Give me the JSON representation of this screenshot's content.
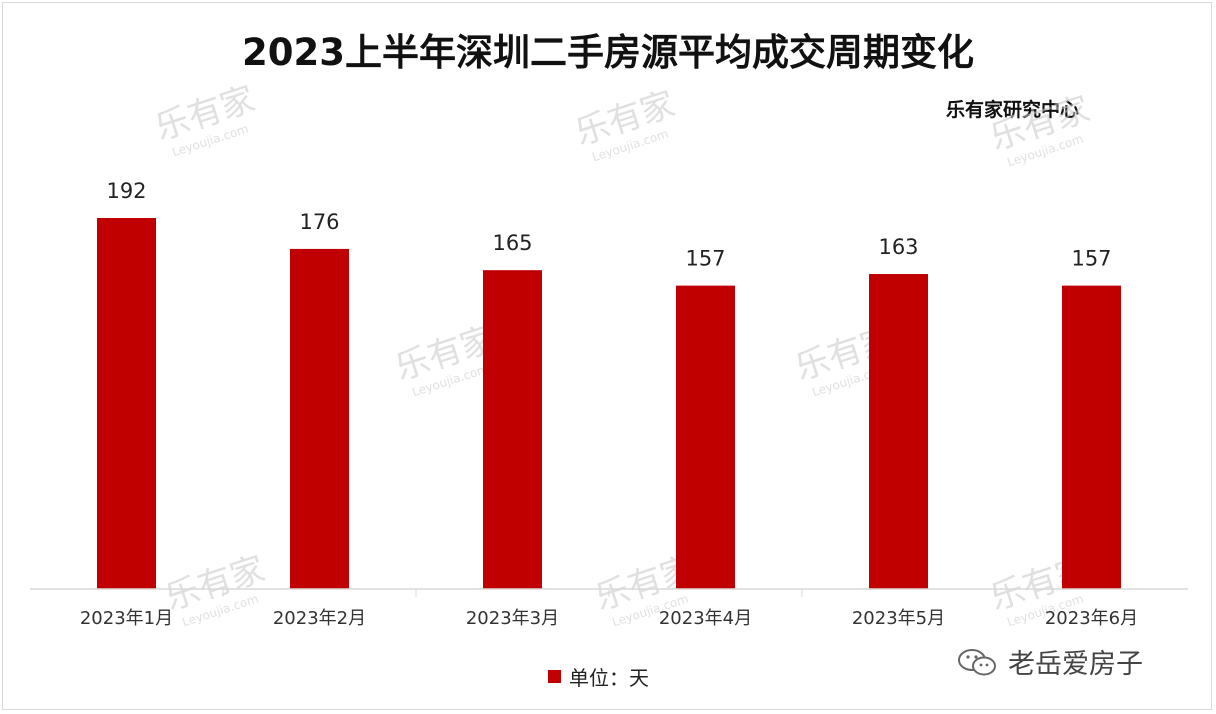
{
  "title": "2023上半年深圳二手房源平均成交周期变化",
  "source": "乐有家研究中心",
  "legend": "单位：天",
  "brand": "老岳爱房子",
  "watermark": {
    "text": "乐有家",
    "sub": "Leyoujia.com"
  },
  "colors": {
    "bar": "#c00000",
    "axis": "#d9d9d9"
  },
  "chart_data": {
    "type": "bar",
    "title": "2023上半年深圳二手房源平均成交周期变化",
    "categories": [
      "2023年1月",
      "2023年2月",
      "2023年3月",
      "2023年4月",
      "2023年5月",
      "2023年6月"
    ],
    "series": [
      {
        "name": "单位：天",
        "values": [
          192,
          176,
          165,
          157,
          163,
          157
        ]
      }
    ],
    "xlabel": "",
    "ylabel": "",
    "ylim": [
      0,
      192
    ],
    "grid": false,
    "legend_position": "bottom",
    "data_labels": true
  }
}
